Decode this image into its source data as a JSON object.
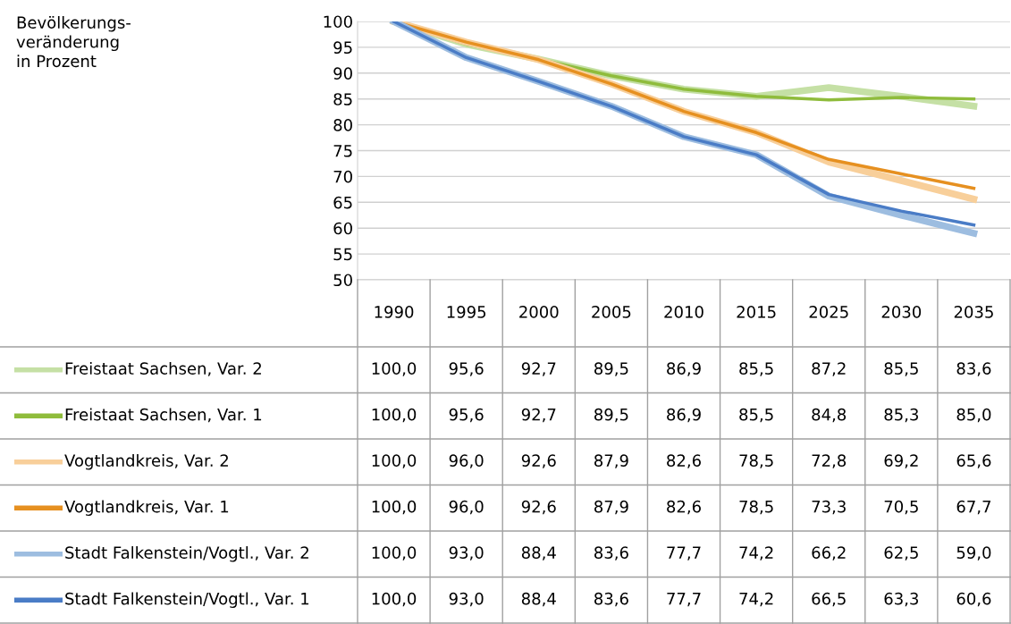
{
  "chart_data": {
    "type": "line",
    "annotations": [
      "Bevölkerungs-\nveränderung\nin Prozent"
    ],
    "categories": [
      "1990",
      "1995",
      "2000",
      "2005",
      "2010",
      "2015",
      "2025",
      "2030",
      "2035"
    ],
    "series": [
      {
        "name": "Freistaat Sachsen, Var. 2",
        "color": "#c5e0a5",
        "values": [
          100.0,
          95.6,
          92.7,
          89.5,
          86.9,
          85.5,
          87.2,
          85.5,
          83.6
        ],
        "value_labels": [
          "100,0",
          "95,6",
          "92,7",
          "89,5",
          "86,9",
          "85,5",
          "87,2",
          "85,5",
          "83,6"
        ]
      },
      {
        "name": "Freistaat Sachsen, Var. 1",
        "color": "#8fbc3c",
        "values": [
          100.0,
          95.6,
          92.7,
          89.5,
          86.9,
          85.5,
          84.8,
          85.3,
          85.0
        ],
        "value_labels": [
          "100,0",
          "95,6",
          "92,7",
          "89,5",
          "86,9",
          "85,5",
          "84,8",
          "85,3",
          "85,0"
        ]
      },
      {
        "name": "Vogtlandkreis, Var. 2",
        "color": "#f8cf9a",
        "values": [
          100.0,
          96.0,
          92.6,
          87.9,
          82.6,
          78.5,
          72.8,
          69.2,
          65.6
        ],
        "value_labels": [
          "100,0",
          "96,0",
          "92,6",
          "87,9",
          "82,6",
          "78,5",
          "72,8",
          "69,2",
          "65,6"
        ]
      },
      {
        "name": "Vogtlandkreis, Var. 1",
        "color": "#e69020",
        "values": [
          100.0,
          96.0,
          92.6,
          87.9,
          82.6,
          78.5,
          73.3,
          70.5,
          67.7
        ],
        "value_labels": [
          "100,0",
          "96,0",
          "92,6",
          "87,9",
          "82,6",
          "78,5",
          "73,3",
          "70,5",
          "67,7"
        ]
      },
      {
        "name": "Stadt Falkenstein/Vogtl., Var. 2",
        "color": "#9dbde0",
        "values": [
          100.0,
          93.0,
          88.4,
          83.6,
          77.7,
          74.2,
          66.2,
          62.5,
          59.0
        ],
        "value_labels": [
          "100,0",
          "93,0",
          "88,4",
          "83,6",
          "77,7",
          "74,2",
          "66,2",
          "62,5",
          "59,0"
        ]
      },
      {
        "name": "Stadt Falkenstein/Vogtl., Var. 1",
        "color": "#4a7cc6",
        "values": [
          100.0,
          93.0,
          88.4,
          83.6,
          77.7,
          74.2,
          66.5,
          63.3,
          60.6
        ],
        "value_labels": [
          "100,0",
          "93,0",
          "88,4",
          "83,6",
          "77,7",
          "74,2",
          "66,5",
          "63,3",
          "60,6"
        ]
      }
    ],
    "ylim": [
      50,
      100
    ],
    "yticks": [
      50,
      55,
      60,
      65,
      70,
      75,
      80,
      85,
      90,
      95,
      100
    ],
    "grid": "y",
    "legend": "bottom",
    "marker": "none",
    "line_style": "solid"
  }
}
